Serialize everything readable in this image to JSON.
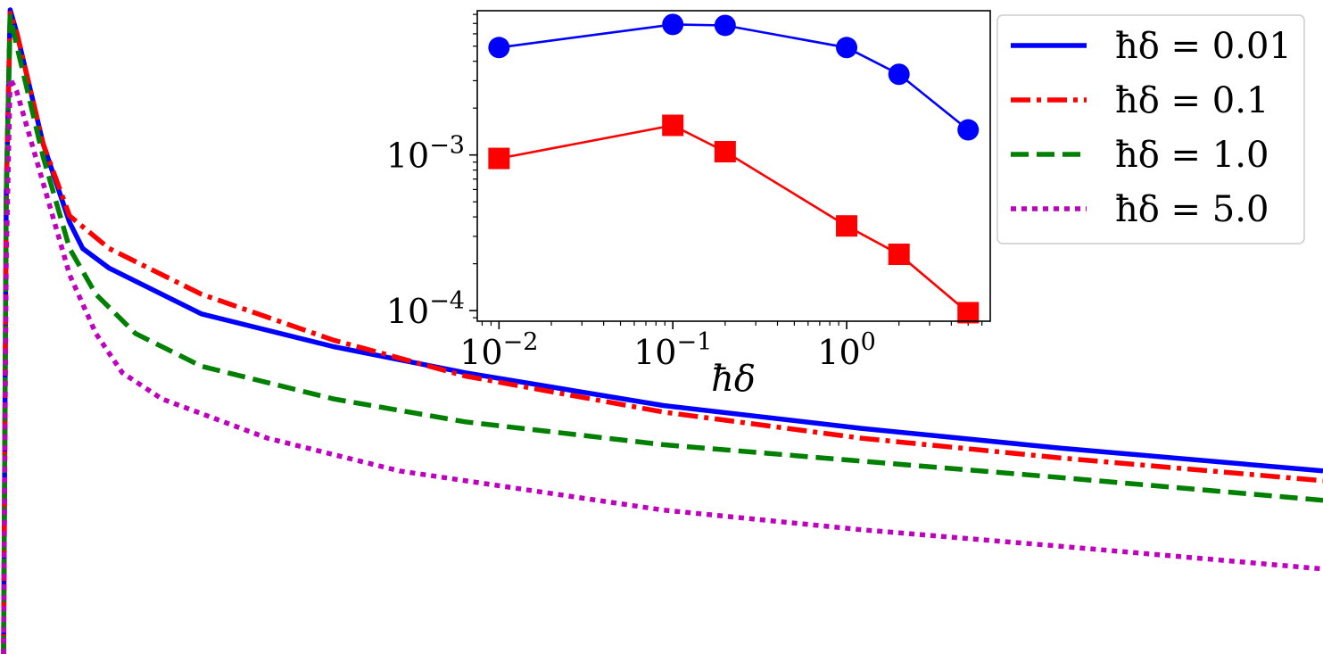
{
  "chart_data": [
    {
      "type": "line",
      "role": "main",
      "title": "",
      "xlabel": "",
      "ylabel": "",
      "legend": {
        "placement": "top-right",
        "entries": [
          {
            "label": "ħδ = 0.01",
            "color": "#0000ff",
            "style": "solid"
          },
          {
            "label": "ħδ = 0.1",
            "color": "#ff0000",
            "style": "dashdot"
          },
          {
            "label": "ħδ = 1.0",
            "color": "#008000",
            "style": "dashed"
          },
          {
            "label": "ħδ = 5.0",
            "color": "#bf00bf",
            "style": "dotted"
          }
        ]
      },
      "series": [
        {
          "name": "ħδ = 0.01",
          "color": "#0000ff",
          "style": "solid",
          "points": [
            [
              0,
              0.0
            ],
            [
              0.002,
              0.7
            ],
            [
              0.005,
              0.985
            ],
            [
              0.01,
              0.95
            ],
            [
              0.03,
              0.78
            ],
            [
              0.05,
              0.66
            ],
            [
              0.06,
              0.62
            ],
            [
              0.08,
              0.59
            ],
            [
              0.15,
              0.52
            ],
            [
              0.25,
              0.47
            ],
            [
              0.35,
              0.43
            ],
            [
              0.5,
              0.38
            ],
            [
              0.65,
              0.345
            ],
            [
              0.8,
              0.315
            ],
            [
              1.0,
              0.28
            ]
          ]
        },
        {
          "name": "ħδ = 0.1",
          "color": "#ff0000",
          "style": "dashdot",
          "points": [
            [
              0,
              0.0
            ],
            [
              0.002,
              0.7
            ],
            [
              0.005,
              0.98
            ],
            [
              0.01,
              0.95
            ],
            [
              0.03,
              0.78
            ],
            [
              0.05,
              0.67
            ],
            [
              0.08,
              0.62
            ],
            [
              0.15,
              0.55
            ],
            [
              0.25,
              0.48
            ],
            [
              0.35,
              0.425
            ],
            [
              0.5,
              0.37
            ],
            [
              0.65,
              0.33
            ],
            [
              0.8,
              0.3
            ],
            [
              1.0,
              0.265
            ]
          ]
        },
        {
          "name": "ħδ = 1.0",
          "color": "#008000",
          "style": "dashed",
          "points": [
            [
              0,
              0.0
            ],
            [
              0.002,
              0.7
            ],
            [
              0.005,
              0.975
            ],
            [
              0.01,
              0.93
            ],
            [
              0.03,
              0.76
            ],
            [
              0.05,
              0.62
            ],
            [
              0.07,
              0.55
            ],
            [
              0.1,
              0.49
            ],
            [
              0.15,
              0.44
            ],
            [
              0.25,
              0.39
            ],
            [
              0.35,
              0.355
            ],
            [
              0.5,
              0.32
            ],
            [
              0.65,
              0.295
            ],
            [
              0.8,
              0.27
            ],
            [
              1.0,
              0.235
            ]
          ]
        },
        {
          "name": "ħδ = 5.0",
          "color": "#bf00bf",
          "style": "dotted",
          "points": [
            [
              0,
              0.0
            ],
            [
              0.002,
              0.6
            ],
            [
              0.005,
              0.88
            ],
            [
              0.01,
              0.86
            ],
            [
              0.03,
              0.72
            ],
            [
              0.05,
              0.58
            ],
            [
              0.07,
              0.49
            ],
            [
              0.09,
              0.43
            ],
            [
              0.12,
              0.39
            ],
            [
              0.2,
              0.33
            ],
            [
              0.3,
              0.28
            ],
            [
              0.5,
              0.22
            ],
            [
              0.65,
              0.19
            ],
            [
              0.8,
              0.165
            ],
            [
              1.0,
              0.13
            ]
          ]
        }
      ]
    },
    {
      "type": "line",
      "role": "inset",
      "title": "",
      "xlabel": "ħδ",
      "ylabel": "",
      "xscale": "log",
      "yscale": "log",
      "xlim": [
        0.0075,
        6.7
      ],
      "ylim": [
        8.55e-05,
        0.00845
      ],
      "xticks": [
        {
          "value": 0.01,
          "base": "10",
          "exp": "−2"
        },
        {
          "value": 0.1,
          "base": "10",
          "exp": "−1"
        },
        {
          "value": 1,
          "base": "10",
          "exp": "0"
        }
      ],
      "yticks": [
        {
          "value": 0.0001,
          "base": "10",
          "exp": "−4"
        },
        {
          "value": 0.001,
          "base": "10",
          "exp": "−3"
        }
      ],
      "series": [
        {
          "color": "#0000ff",
          "marker": "circle",
          "x": [
            0.01,
            0.1,
            0.2,
            1.0,
            2.0,
            5.0
          ],
          "y": [
            0.0049,
            0.0069,
            0.0068,
            0.0049,
            0.0033,
            0.00145
          ]
        },
        {
          "color": "#ff0000",
          "marker": "square",
          "x": [
            0.01,
            0.1,
            0.2,
            1.0,
            2.0,
            5.0
          ],
          "y": [
            0.00095,
            0.00155,
            0.00105,
            0.00035,
            0.00023,
            9.7e-05
          ]
        }
      ]
    }
  ]
}
